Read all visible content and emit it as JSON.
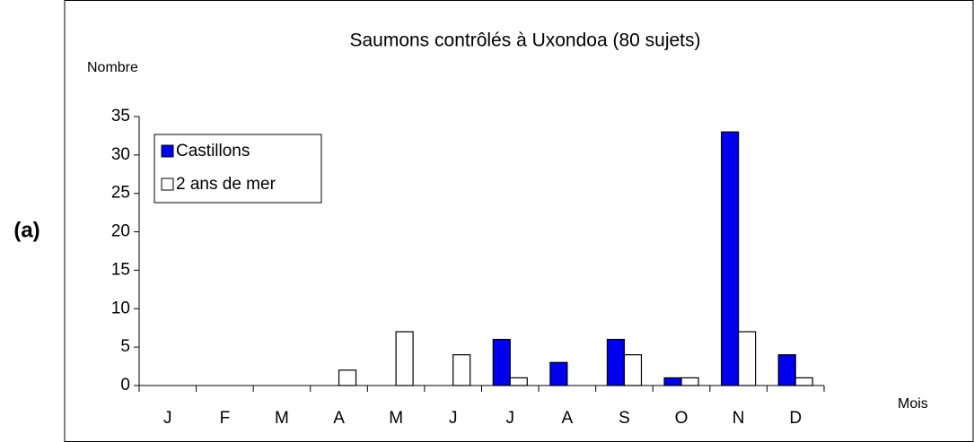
{
  "chart_data": {
    "type": "bar",
    "title": "Saumons contrôlés à Uxondoa (80 sujets)",
    "panel_label": "(a)",
    "y_label": "Nombre",
    "x_label": "Mois",
    "categories": [
      "J",
      "F",
      "M",
      "A",
      "M",
      "J",
      "J",
      "A",
      "S",
      "O",
      "N",
      "D"
    ],
    "series": [
      {
        "name": "Castillons",
        "color": "#0000ee",
        "values": [
          0,
          0,
          0,
          0,
          0,
          0,
          6,
          3,
          6,
          1,
          33,
          4
        ]
      },
      {
        "name": "2 ans de mer",
        "color": "#ffffff",
        "values": [
          0,
          0,
          0,
          2,
          7,
          4,
          1,
          0,
          4,
          1,
          7,
          1
        ]
      }
    ],
    "ylim": [
      0,
      35
    ],
    "yticks": [
      0,
      5,
      10,
      15,
      20,
      25,
      30,
      35
    ],
    "grid": false,
    "legend": "upper left"
  }
}
